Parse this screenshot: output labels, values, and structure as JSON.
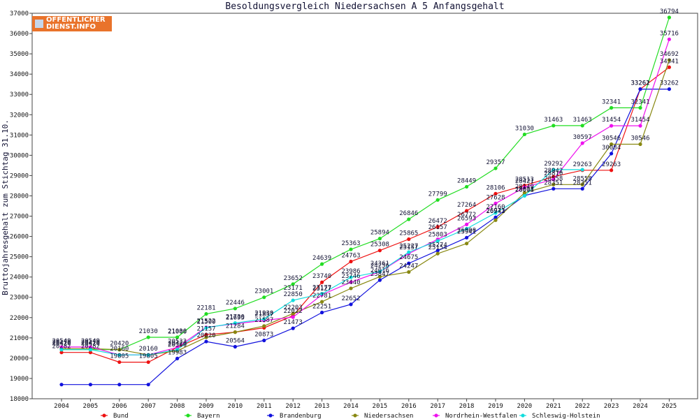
{
  "logo": {
    "line1": "ÖFFENTLICHER",
    "line2": "DIENST.INFO"
  },
  "chart_data": {
    "type": "line",
    "title": "Besoldungsvergleich Niedersachsen A 5 Anfangsgehalt",
    "xlabel": "",
    "ylabel": "Bruttojahresgehalt zum Stichtag 31.10.",
    "ylim": [
      18000,
      37000
    ],
    "yticks": [
      18000,
      19000,
      20000,
      21000,
      22000,
      23000,
      24000,
      25000,
      26000,
      27000,
      28000,
      29000,
      30000,
      31000,
      32000,
      33000,
      34000,
      35000,
      36000,
      37000
    ],
    "grid": false,
    "legend_position": "bottom",
    "categories": [
      "2004",
      "2005",
      "2006",
      "2007",
      "2008",
      "2009",
      "2010",
      "2011",
      "2012",
      "2013",
      "2014",
      "2015",
      "2016",
      "2017",
      "2018",
      "2019",
      "2020",
      "2021",
      "2022",
      "2023",
      "2024",
      "2025"
    ],
    "series": [
      {
        "name": "Bund",
        "color": "#ee1111",
        "values": [
          20282,
          20282,
          19805,
          19805,
          20533,
          21157,
          21284,
          21497,
          22092,
          23740,
          24763,
          25308,
          25865,
          26472,
          27264,
          28106,
          28513,
          28942,
          29263,
          29263,
          33262,
          34341
        ]
      },
      {
        "name": "Bayern",
        "color": "#22dd22",
        "values": [
          20419,
          20419,
          20420,
          21030,
          21030,
          22181,
          22446,
          23001,
          23652,
          24639,
          25363,
          25894,
          26846,
          27799,
          28449,
          29357,
          31030,
          31463,
          31463,
          32341,
          32341,
          36794
        ]
      },
      {
        "name": "Brandenburg",
        "color": "#1111dd",
        "values": [
          18700,
          18700,
          18700,
          18700,
          19983,
          20820,
          20564,
          20873,
          21473,
          22251,
          22652,
          23847,
          24675,
          25303,
          25941,
          26941,
          28018,
          28351,
          28351,
          30084,
          33261,
          33262
        ]
      },
      {
        "name": "Niedersachsen",
        "color": "#888811",
        "values": [
          20470,
          20470,
          20420,
          20160,
          20360,
          21027,
          21284,
          21587,
          22203,
          22781,
          23440,
          24017,
          24247,
          25154,
          25651,
          26800,
          28149,
          28558,
          28558,
          30546,
          30546,
          34692
        ]
      },
      {
        "name": "Nordrhein-Westfalen",
        "color": "#ee11ee",
        "values": [
          20549,
          20549,
          20160,
          20160,
          20533,
          21522,
          21695,
          21857,
          22022,
          23127,
          23746,
          24256,
          25157,
          25857,
          26593,
          27629,
          28421,
          28810,
          30597,
          31454,
          31454,
          35716
        ]
      },
      {
        "name": "Schleswig-Holstein",
        "color": "#11dddd",
        "values": [
          20420,
          20420,
          20160,
          20160,
          20420,
          21500,
          21730,
          21930,
          22850,
          23177,
          23986,
          24261,
          25227,
          25774,
          26380,
          27160,
          28001,
          29292,
          29292,
          null,
          null,
          null
        ]
      }
    ],
    "data_labels": [
      {
        "x": "2004",
        "v": 20549,
        "text": "20549"
      },
      {
        "x": "2004",
        "v": 20470,
        "text": "20470"
      },
      {
        "x": "2004",
        "v": 20420,
        "text": "20420"
      },
      {
        "x": "2004",
        "v": 20282,
        "text": "20282"
      },
      {
        "x": "2005",
        "v": 20549,
        "text": "20549"
      },
      {
        "x": "2005",
        "v": 20470,
        "text": "20470"
      },
      {
        "x": "2005",
        "v": 20420,
        "text": "20420"
      },
      {
        "x": "2005",
        "v": 20282,
        "text": "20282"
      },
      {
        "x": "2006",
        "v": 20420,
        "text": "20420"
      },
      {
        "x": "2006",
        "v": 20160,
        "text": "20160"
      },
      {
        "x": "2006",
        "v": 19805,
        "text": "19805"
      },
      {
        "x": "2007",
        "v": 21030,
        "text": "21030"
      },
      {
        "x": "2007",
        "v": 20160,
        "text": "20160"
      },
      {
        "x": "2007",
        "v": 19805,
        "text": "19805"
      },
      {
        "x": "2008",
        "v": 21030,
        "text": "21030"
      },
      {
        "x": "2008",
        "v": 21006,
        "text": "21006"
      },
      {
        "x": "2008",
        "v": 20533,
        "text": "20533"
      },
      {
        "x": "2008",
        "v": 20420,
        "text": "20420"
      },
      {
        "x": "2008",
        "v": 20360,
        "text": "20360"
      },
      {
        "x": "2008",
        "v": 19983,
        "text": "19983"
      },
      {
        "x": "2009",
        "v": 22181,
        "text": "22181"
      },
      {
        "x": "2009",
        "v": 21522,
        "text": "21522"
      },
      {
        "x": "2009",
        "v": 21500,
        "text": "21500"
      },
      {
        "x": "2009",
        "v": 21157,
        "text": "21157"
      },
      {
        "x": "2009",
        "v": 20820,
        "text": "20820"
      },
      {
        "x": "2010",
        "v": 22446,
        "text": "22446"
      },
      {
        "x": "2010",
        "v": 21730,
        "text": "21730"
      },
      {
        "x": "2010",
        "v": 21695,
        "text": "21695"
      },
      {
        "x": "2010",
        "v": 21284,
        "text": "21284"
      },
      {
        "x": "2010",
        "v": 20564,
        "text": "20564"
      },
      {
        "x": "2011",
        "v": 23001,
        "text": "23001"
      },
      {
        "x": "2011",
        "v": 21930,
        "text": "21930"
      },
      {
        "x": "2011",
        "v": 21857,
        "text": "21857"
      },
      {
        "x": "2011",
        "v": 21587,
        "text": "21587"
      },
      {
        "x": "2011",
        "v": 20873,
        "text": "20873"
      },
      {
        "x": "2012",
        "v": 23652,
        "text": "23652"
      },
      {
        "x": "2012",
        "v": 23171,
        "text": "23171"
      },
      {
        "x": "2012",
        "v": 22850,
        "text": "22850"
      },
      {
        "x": "2012",
        "v": 22022,
        "text": "22022"
      },
      {
        "x": "2012",
        "v": 22203,
        "text": "22203"
      },
      {
        "x": "2012",
        "v": 21473,
        "text": "21473"
      },
      {
        "x": "2013",
        "v": 24639,
        "text": "24639"
      },
      {
        "x": "2013",
        "v": 23740,
        "text": "23740"
      },
      {
        "x": "2013",
        "v": 23177,
        "text": "23177"
      },
      {
        "x": "2013",
        "v": 23127,
        "text": "23127"
      },
      {
        "x": "2013",
        "v": 22781,
        "text": "22781"
      },
      {
        "x": "2013",
        "v": 22251,
        "text": "22251"
      },
      {
        "x": "2014",
        "v": 25363,
        "text": "25363"
      },
      {
        "x": "2014",
        "v": 24763,
        "text": "24763"
      },
      {
        "x": "2014",
        "v": 23986,
        "text": "23986"
      },
      {
        "x": "2014",
        "v": 23746,
        "text": "23746"
      },
      {
        "x": "2014",
        "v": 23440,
        "text": "23440"
      },
      {
        "x": "2014",
        "v": 22652,
        "text": "22652"
      },
      {
        "x": "2015",
        "v": 25894,
        "text": "25894"
      },
      {
        "x": "2015",
        "v": 25308,
        "text": "25308"
      },
      {
        "x": "2015",
        "v": 24361,
        "text": "24361"
      },
      {
        "x": "2015",
        "v": 24256,
        "text": "24256"
      },
      {
        "x": "2015",
        "v": 24016,
        "text": "24016"
      },
      {
        "x": "2015",
        "v": 23847,
        "text": "23847"
      },
      {
        "x": "2016",
        "v": 26846,
        "text": "26846"
      },
      {
        "x": "2016",
        "v": 25865,
        "text": "25865"
      },
      {
        "x": "2016",
        "v": 25227,
        "text": "25227"
      },
      {
        "x": "2016",
        "v": 25157,
        "text": "25157"
      },
      {
        "x": "2016",
        "v": 24675,
        "text": "24675"
      },
      {
        "x": "2016",
        "v": 24247,
        "text": "24247"
      },
      {
        "x": "2017",
        "v": 27799,
        "text": "27799"
      },
      {
        "x": "2017",
        "v": 26472,
        "text": "26472"
      },
      {
        "x": "2017",
        "v": 26157,
        "text": "26157"
      },
      {
        "x": "2017",
        "v": 25803,
        "text": "25803"
      },
      {
        "x": "2017",
        "v": 25274,
        "text": "25274"
      },
      {
        "x": "2017",
        "v": 25154,
        "text": "25154"
      },
      {
        "x": "2018",
        "v": 28449,
        "text": "28449"
      },
      {
        "x": "2018",
        "v": 27264,
        "text": "27264"
      },
      {
        "x": "2018",
        "v": 26772,
        "text": "26772"
      },
      {
        "x": "2018",
        "v": 26593,
        "text": "26593"
      },
      {
        "x": "2018",
        "v": 26000,
        "text": "26000"
      },
      {
        "x": "2018",
        "v": 25941,
        "text": "25941"
      },
      {
        "x": "2019",
        "v": 29357,
        "text": "29357"
      },
      {
        "x": "2019",
        "v": 28106,
        "text": "28106"
      },
      {
        "x": "2019",
        "v": 27628,
        "text": "27628"
      },
      {
        "x": "2019",
        "v": 27160,
        "text": "27160"
      },
      {
        "x": "2019",
        "v": 26973,
        "text": "26973"
      },
      {
        "x": "2019",
        "v": 26941,
        "text": "26941"
      },
      {
        "x": "2020",
        "v": 31030,
        "text": "31030"
      },
      {
        "x": "2020",
        "v": 28513,
        "text": "28513"
      },
      {
        "x": "2020",
        "v": 28421,
        "text": "28421"
      },
      {
        "x": "2020",
        "v": 28149,
        "text": "28149"
      },
      {
        "x": "2020",
        "v": 28001,
        "text": "28001"
      },
      {
        "x": "2020",
        "v": 28018,
        "text": "28018"
      },
      {
        "x": "2021",
        "v": 31463,
        "text": "31463"
      },
      {
        "x": "2021",
        "v": 29292,
        "text": "29292"
      },
      {
        "x": "2021",
        "v": 28942,
        "text": "28942"
      },
      {
        "x": "2021",
        "v": 28810,
        "text": "28810"
      },
      {
        "x": "2021",
        "v": 28558,
        "text": "28558"
      },
      {
        "x": "2021",
        "v": 28351,
        "text": "28351"
      },
      {
        "x": "2022",
        "v": 31463,
        "text": "31463"
      },
      {
        "x": "2022",
        "v": 30597,
        "text": "30597"
      },
      {
        "x": "2022",
        "v": 29263,
        "text": "29263"
      },
      {
        "x": "2022",
        "v": 28558,
        "text": "28558"
      },
      {
        "x": "2022",
        "v": 28351,
        "text": "28351"
      },
      {
        "x": "2023",
        "v": 32341,
        "text": "32341"
      },
      {
        "x": "2023",
        "v": 31454,
        "text": "31454"
      },
      {
        "x": "2023",
        "v": 30546,
        "text": "30546"
      },
      {
        "x": "2023",
        "v": 30084,
        "text": "30084"
      },
      {
        "x": "2023",
        "v": 29263,
        "text": "29263"
      },
      {
        "x": "2024",
        "v": 33261,
        "text": "33261"
      },
      {
        "x": "2024",
        "v": 33262,
        "text": "33262"
      },
      {
        "x": "2024",
        "v": 32341,
        "text": "32341"
      },
      {
        "x": "2024",
        "v": 31454,
        "text": "31454"
      },
      {
        "x": "2024",
        "v": 30546,
        "text": "30546"
      },
      {
        "x": "2025",
        "v": 36794,
        "text": "36794"
      },
      {
        "x": "2025",
        "v": 35716,
        "text": "35716"
      },
      {
        "x": "2025",
        "v": 34692,
        "text": "34692"
      },
      {
        "x": "2025",
        "v": 34341,
        "text": "34341"
      },
      {
        "x": "2025",
        "v": 33262,
        "text": "33262"
      }
    ]
  }
}
